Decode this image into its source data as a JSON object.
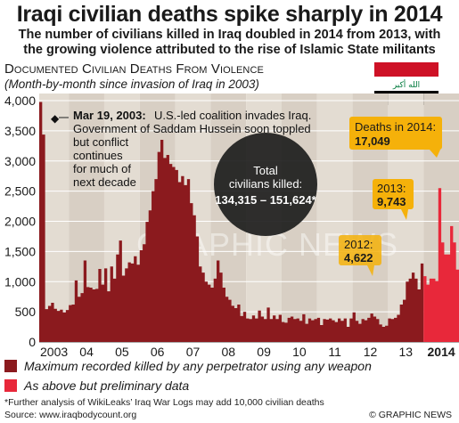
{
  "header": {
    "title": "Iraqi civilian deaths spike sharply in 2014",
    "subtitle_line1": "The number of civilians killed in Iraq doubled in 2014 from 2013, with",
    "subtitle_line2": "the growing violence attributed to the rise of Islamic State militants",
    "section_title": "Documented Civilian Deaths From Violence",
    "section_subtitle": "(Month-by-month since invasion of Iraq in 2003)"
  },
  "flag": {
    "name": "iraq-flag",
    "script": "الله أكبر",
    "colors": {
      "red": "#ce1126",
      "white": "#ffffff",
      "black": "#000000",
      "green": "#007a3d"
    }
  },
  "chart_data": {
    "type": "area",
    "ylim": [
      0,
      4000
    ],
    "yticks": [
      "4,000",
      "3,500",
      "3,000",
      "2,500",
      "2,000",
      "1,500",
      "1,000",
      "500",
      "0"
    ],
    "ytick_values": [
      4000,
      3500,
      3000,
      2500,
      2000,
      1500,
      1000,
      500,
      0
    ],
    "year_labels": [
      "2003",
      "04",
      "05",
      "06",
      "07",
      "08",
      "09",
      "10",
      "11",
      "12",
      "13",
      "2014"
    ],
    "x_start": "2003-03",
    "x_end": "2014-12",
    "series": [
      {
        "name": "Maximum recorded killed by any perpetrator using any weapon",
        "color": "#8b1a1e",
        "start_month": "2003-03",
        "values": [
          3977,
          3437,
          545,
          597,
          650,
          550,
          515,
          535,
          490,
          530,
          610,
          620,
          1020,
          750,
          810,
          1350,
          910,
          900,
          870,
          880,
          1210,
          950,
          1220,
          840,
          1250,
          1050,
          1450,
          1680,
          1100,
          1220,
          1320,
          1300,
          1420,
          1280,
          1520,
          1620,
          1990,
          2180,
          2500,
          2700,
          3150,
          3350,
          3050,
          3100,
          2950,
          2900,
          2850,
          2650,
          2750,
          2600,
          2700,
          2300,
          2100,
          1750,
          1250,
          1150,
          1000,
          950,
          900,
          1050,
          1350,
          1150,
          900,
          750,
          700,
          600,
          560,
          620,
          430,
          500,
          390,
          380,
          440,
          390,
          520,
          420,
          380,
          570,
          380,
          440,
          380,
          450,
          330,
          320,
          400,
          420,
          380,
          390,
          350,
          460,
          300,
          390,
          360,
          380,
          400,
          280,
          380,
          370,
          390,
          360,
          330,
          390,
          350,
          390,
          250,
          390,
          490,
          350,
          300,
          380,
          360,
          400,
          470,
          420,
          380,
          290,
          250,
          270,
          390,
          380,
          400,
          450,
          620,
          700,
          1000,
          1050,
          1150,
          1050,
          870,
          1300
        ]
      },
      {
        "name": "As above but preliminary data",
        "color": "#e8283a",
        "start_month": "2014-01",
        "values": [
          1090,
          950,
          1050,
          1050,
          1010,
          2550,
          1650,
          1450,
          1450,
          1920,
          1650,
          1200
        ]
      }
    ],
    "annotations": [
      {
        "date_label": "Mar 19, 2003:",
        "text": "U.S.-led coalition invades Iraq. Government of Saddam Hussein soon toppled but conflict continues for much of next decade"
      },
      {
        "text_top": "Total",
        "text_mid": "civilians killed:",
        "text_bottom": "134,315 – 151,624*"
      },
      {
        "label": "2012:",
        "value": "4,622"
      },
      {
        "label": "2013:",
        "value": "9,743"
      },
      {
        "label": "Deaths in 2014:",
        "value": "17,049"
      }
    ],
    "watermark": "GRAPHIC NEWS"
  },
  "legend": [
    {
      "label": "Maximum recorded killed by any perpetrator using any weapon",
      "color": "#8b1a1e"
    },
    {
      "label": "As above but preliminary data",
      "color": "#e8283a"
    }
  ],
  "footer": {
    "footnote": "*Further analysis of WikiLeaks’ Iraq War Logs may add 10,000 civilian deaths",
    "source": "Source: www.iraqbodycount.org",
    "credit": "© GRAPHIC NEWS"
  }
}
